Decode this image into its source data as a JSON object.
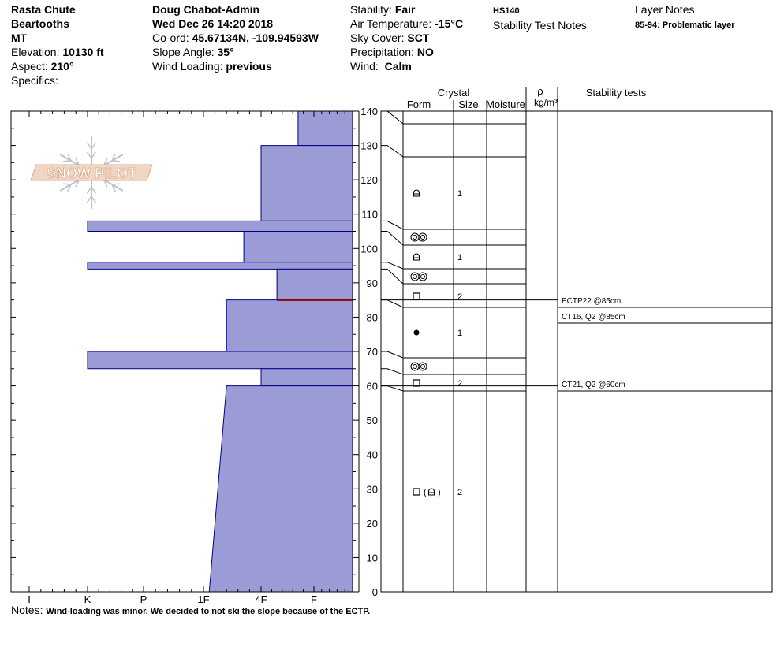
{
  "header": {
    "site": "Rasta Chute",
    "range": "Beartooths",
    "state": "MT",
    "elevation_label": "Elevation:",
    "elevation_value": "10130 ft",
    "aspect_label": "Aspect:",
    "aspect_value": "210°",
    "specifics_label": "Specifics:",
    "observer": "Doug Chabot-Admin",
    "datetime": "Wed Dec 26 14:20 2018",
    "coord_label": "Co-ord:",
    "coord_value": "45.67134N, -109.94593W",
    "slope_label": "Slope Angle:",
    "slope_value": "35°",
    "wind_loading_label": "Wind Loading:",
    "wind_loading_value": "previous",
    "stability_label": "Stability:",
    "stability_value": "Fair",
    "air_temp_label": "Air Temperature:",
    "air_temp_value": "-15°C",
    "sky_label": "Sky Cover:",
    "sky_value": "SCT",
    "precip_label": "Precipitation:",
    "precip_value": "NO",
    "wind_label": "Wind:",
    "wind_value": "Calm",
    "hs": "HS140",
    "stability_test_notes": "Stability Test Notes",
    "layer_notes_title": "Layer Notes",
    "layer_note": "85-94: Problematic layer"
  },
  "notes": {
    "label": "Notes:",
    "text": "Wind-loading was minor. We decided to not ski the slope because of the ECTP."
  },
  "logo_text": "SNOW PILOT",
  "colors": {
    "fill": "#9b9bd6",
    "edge": "#00008b",
    "weak_layer": "#8b0000"
  },
  "columns": {
    "crystal": "Crystal",
    "form": "Form",
    "size": "Size",
    "moisture": "Moisture",
    "density_symbol": "ρ",
    "density_unit": "kg/m³",
    "stability_tests": "Stability tests"
  },
  "chart_data": {
    "type": "bar",
    "orientation": "horizontal",
    "hardness_ticks": [
      "I",
      "K",
      "P",
      "1F",
      "4F",
      "F"
    ],
    "hardness_scale_note": "hardness index: F=1, 4F=2, 1F=3, P=4, K=5, I=6",
    "height_ticks": [
      0,
      10,
      20,
      30,
      40,
      50,
      60,
      70,
      80,
      90,
      100,
      110,
      120,
      130,
      140
    ],
    "ylim": [
      0,
      140
    ],
    "layers": [
      {
        "bottom": 130,
        "top": 140,
        "hardness_bottom": 1.3,
        "hardness_top": 1.3,
        "form": "",
        "size": ""
      },
      {
        "bottom": 108,
        "top": 130,
        "hardness_bottom": 2.0,
        "hardness_top": 2.0,
        "form": "faceted-rounded",
        "size": "1"
      },
      {
        "bottom": 105,
        "top": 108,
        "hardness_bottom": 5.0,
        "hardness_top": 5.0,
        "form": "surface-hoar",
        "size": ""
      },
      {
        "bottom": 96,
        "top": 105,
        "hardness_bottom": 2.3,
        "hardness_top": 2.3,
        "form": "faceted-rounded",
        "size": "1"
      },
      {
        "bottom": 94,
        "top": 96,
        "hardness_bottom": 5.0,
        "hardness_top": 5.0,
        "form": "surface-hoar",
        "size": ""
      },
      {
        "bottom": 85,
        "top": 94,
        "hardness_bottom": 1.7,
        "hardness_top": 1.7,
        "form": "faceted",
        "size": "2"
      },
      {
        "bottom": 70,
        "top": 85,
        "hardness_bottom": 2.6,
        "hardness_top": 2.6,
        "form": "ice-formation",
        "size": "1"
      },
      {
        "bottom": 65,
        "top": 70,
        "hardness_bottom": 5.0,
        "hardness_top": 5.0,
        "form": "surface-hoar",
        "size": ""
      },
      {
        "bottom": 60,
        "top": 65,
        "hardness_bottom": 2.0,
        "hardness_top": 2.0,
        "form": "faceted",
        "size": "2"
      },
      {
        "bottom": 0,
        "top": 60,
        "hardness_bottom": 2.9,
        "hardness_top": 2.6,
        "form": "faceted",
        "size": "2"
      }
    ],
    "weak_layer_height": 85,
    "stability_tests": [
      {
        "height": 85,
        "label": "ECTP22 @85cm"
      },
      {
        "height": 85,
        "label": "CT16, Q2 @85cm"
      },
      {
        "height": 60,
        "label": "CT21, Q2 @60cm"
      }
    ]
  }
}
